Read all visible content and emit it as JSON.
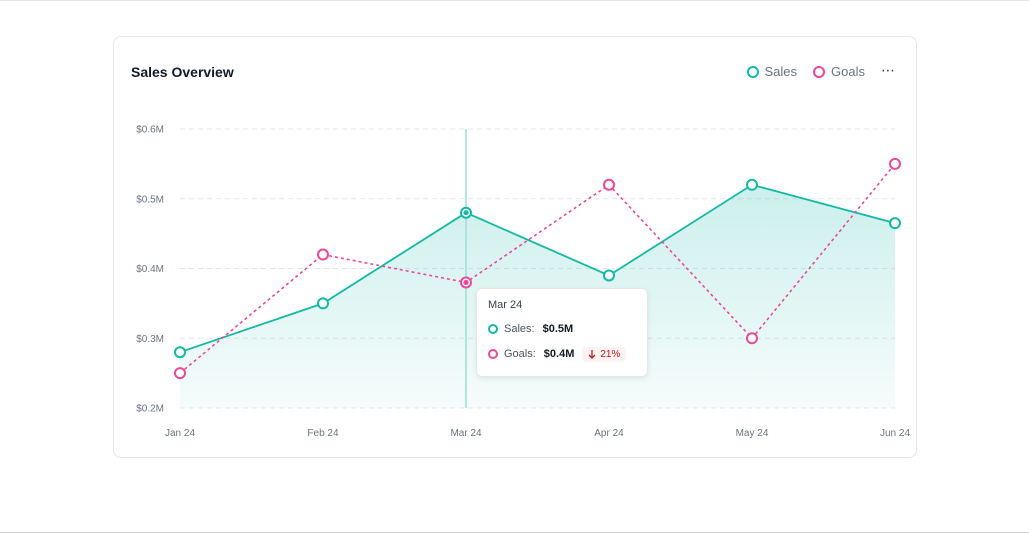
{
  "card": {
    "title": "Sales Overview",
    "more_icon": "⋯"
  },
  "colors": {
    "sales": "#14b8a6",
    "goals": "#ec4899",
    "grid": "#e5e7eb",
    "cursor": "#99e0d8"
  },
  "legend": [
    {
      "name": "Sales",
      "icon": "ring-dot-icon"
    },
    {
      "name": "Goals",
      "icon": "ring-dot-icon"
    }
  ],
  "chart_data": {
    "type": "line",
    "title": "Sales Overview",
    "categories": [
      "Jan 24",
      "Feb 24",
      "Mar 24",
      "Apr 24",
      "May 24",
      "Jun 24"
    ],
    "series": [
      {
        "name": "Sales",
        "values": [
          0.28,
          0.35,
          0.48,
          0.39,
          0.52,
          0.465
        ],
        "style": "solid",
        "area": true
      },
      {
        "name": "Goals",
        "values": [
          0.25,
          0.42,
          0.38,
          0.52,
          0.3,
          0.55
        ],
        "style": "dashed",
        "area": false
      }
    ],
    "ylim": [
      0.2,
      0.6
    ],
    "yticks": [
      0.6,
      0.5,
      0.4,
      0.3,
      0.2
    ],
    "ytick_labels": [
      "$0.6M",
      "$0.5M",
      "$0.4M",
      "$0.3M",
      "$0.2M"
    ],
    "grid": true,
    "highlighted_category": "Mar 24",
    "xlabel": "",
    "ylabel": ""
  },
  "tooltip": {
    "title": "Mar 24",
    "rows": [
      {
        "label": "Sales:",
        "value": "$0.5M"
      },
      {
        "label": "Goals:",
        "value": "$0.4M",
        "badge": "21%",
        "badge_icon": "arrow-down-icon"
      }
    ]
  }
}
